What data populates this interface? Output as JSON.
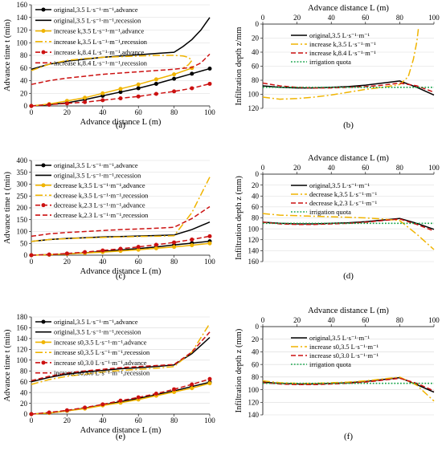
{
  "colors": {
    "original": "#000000",
    "k_a": "#f0b400",
    "k_b": "#cc1111",
    "quota": "#16a34a"
  },
  "chart_data": [
    {
      "type": "line",
      "panel_label": "(a)",
      "xlabel": "Advance distance L (m)",
      "ylabel": "Advance time t (min)",
      "xlim": [
        0,
        100
      ],
      "ylim": [
        0,
        160
      ],
      "xticks": [
        0,
        20,
        40,
        60,
        80,
        100
      ],
      "yticks": [
        0,
        20,
        40,
        60,
        80,
        100,
        120,
        140,
        160
      ],
      "legend_position": "top-left",
      "series": [
        {
          "name": "original,3.5 L·s⁻¹·m⁻¹,advance",
          "color_key": "original",
          "style": "solid-marker",
          "x": [
            0,
            10,
            20,
            30,
            40,
            50,
            60,
            70,
            80,
            90,
            100
          ],
          "y": [
            0,
            2,
            5,
            10,
            16,
            22,
            28,
            35,
            43,
            51,
            59
          ]
        },
        {
          "name": "original,3.5 L·s⁻¹·m⁻¹,recession",
          "color_key": "original",
          "style": "solid",
          "x": [
            0,
            10,
            20,
            30,
            40,
            50,
            60,
            70,
            80,
            85,
            90,
            95,
            100
          ],
          "y": [
            58,
            66,
            71,
            74,
            77,
            79,
            81,
            83,
            85,
            94,
            105,
            120,
            140
          ]
        },
        {
          "name": "increase k,3.5 L·s⁻¹·m⁻¹,advance",
          "color_key": "k_a",
          "style": "solid-marker",
          "x": [
            0,
            10,
            20,
            30,
            40,
            50,
            60,
            70,
            80,
            90
          ],
          "y": [
            0,
            3,
            8,
            13,
            20,
            27,
            34,
            42,
            50,
            60
          ]
        },
        {
          "name": "increase k,3.5 L·s⁻¹·m⁻¹,recession",
          "color_key": "k_a",
          "style": "dashdot",
          "x": [
            0,
            10,
            20,
            30,
            40,
            50,
            60,
            70,
            80,
            85,
            88,
            90,
            88,
            85
          ],
          "y": [
            56,
            66,
            72,
            75,
            77,
            78,
            79,
            80,
            80,
            79,
            77,
            72,
            65,
            60
          ]
        },
        {
          "name": "increase k,8.4 L·s⁻¹·m⁻¹,advance",
          "color_key": "k_b",
          "style": "dashed-marker",
          "x": [
            0,
            10,
            20,
            30,
            40,
            50,
            60,
            70,
            80,
            90,
            100
          ],
          "y": [
            0,
            2,
            4,
            6,
            9,
            12,
            15,
            19,
            23,
            28,
            35
          ]
        },
        {
          "name": "increase k,8.4 L·s⁻¹·m⁻¹,recession",
          "color_key": "k_b",
          "style": "dashed",
          "x": [
            0,
            10,
            20,
            30,
            40,
            50,
            60,
            70,
            80,
            90,
            95,
            100
          ],
          "y": [
            34,
            40,
            44,
            47,
            50,
            52,
            54,
            56,
            58,
            61,
            68,
            82
          ]
        }
      ]
    },
    {
      "type": "line",
      "panel_label": "(b)",
      "xlabel": "Advance distance L (m)",
      "ylabel": "Infiltration depth z/mm",
      "x_axis_position": "top",
      "y_inverted": true,
      "xlim": [
        0,
        100
      ],
      "ylim": [
        0,
        120
      ],
      "xticks": [
        0,
        20,
        40,
        60,
        80,
        100
      ],
      "yticks": [
        0,
        20,
        40,
        60,
        80,
        100,
        120
      ],
      "legend_position": "top-right",
      "series": [
        {
          "name": "original,3.5 L·s⁻¹·m⁻¹",
          "color_key": "original",
          "style": "solid",
          "x": [
            0,
            10,
            20,
            30,
            40,
            50,
            60,
            70,
            80,
            90,
            100
          ],
          "y": [
            88,
            90,
            91,
            91,
            90,
            89,
            87,
            84,
            81,
            90,
            101
          ]
        },
        {
          "name": "increase k,3.5 L·s⁻¹·m⁻¹",
          "color_key": "k_a",
          "style": "dashdot",
          "x": [
            0,
            10,
            20,
            30,
            40,
            50,
            60,
            70,
            80,
            85,
            88,
            90,
            91
          ],
          "y": [
            104,
            107,
            106,
            104,
            101,
            97,
            93,
            90,
            86,
            75,
            50,
            25,
            5
          ]
        },
        {
          "name": "increase k,8.4 L·s⁻¹·m⁻¹",
          "color_key": "k_b",
          "style": "dashed",
          "x": [
            0,
            10,
            20,
            30,
            40,
            50,
            60,
            70,
            80,
            90,
            100
          ],
          "y": [
            84,
            88,
            90,
            91,
            91,
            90,
            89,
            87,
            84,
            88,
            97
          ]
        },
        {
          "name": "irrigation quota",
          "color_key": "quota",
          "style": "dotted",
          "x": [
            0,
            100
          ],
          "y": [
            90,
            90
          ]
        }
      ]
    },
    {
      "type": "line",
      "panel_label": "(c)",
      "xlabel": "Advance distance L (m)",
      "ylabel": "Advance time t (min)",
      "xlim": [
        0,
        100
      ],
      "ylim": [
        0,
        400
      ],
      "xticks": [
        0,
        20,
        40,
        60,
        80,
        100
      ],
      "yticks": [
        0,
        50,
        100,
        150,
        200,
        250,
        300,
        350,
        400
      ],
      "legend_position": "top-left",
      "series": [
        {
          "name": "original,3.5 L·s⁻¹·m⁻¹,advance",
          "color_key": "original",
          "style": "solid-marker",
          "x": [
            0,
            10,
            20,
            30,
            40,
            50,
            60,
            70,
            80,
            90,
            100
          ],
          "y": [
            0,
            2,
            5,
            10,
            16,
            22,
            28,
            35,
            43,
            51,
            59
          ]
        },
        {
          "name": "original,3.5 L·s⁻¹·m⁻¹,recession",
          "color_key": "original",
          "style": "solid",
          "x": [
            0,
            10,
            20,
            30,
            40,
            50,
            60,
            70,
            80,
            90,
            100
          ],
          "y": [
            58,
            66,
            71,
            74,
            77,
            79,
            81,
            83,
            85,
            108,
            140
          ]
        },
        {
          "name": "decrease k,3.5 L·s⁻¹·m⁻¹,advance",
          "color_key": "k_a",
          "style": "solid-marker",
          "x": [
            0,
            10,
            20,
            30,
            40,
            50,
            60,
            70,
            80,
            90,
            100
          ],
          "y": [
            0,
            2,
            5,
            9,
            13,
            18,
            23,
            29,
            35,
            42,
            50
          ]
        },
        {
          "name": "decrease k,3.5 L·s⁻¹·m⁻¹,recession",
          "color_key": "k_a",
          "style": "dashdot",
          "x": [
            0,
            10,
            20,
            30,
            40,
            50,
            60,
            70,
            80,
            90,
            100
          ],
          "y": [
            58,
            66,
            70,
            73,
            75,
            77,
            79,
            80,
            82,
            180,
            330
          ]
        },
        {
          "name": "decrease k,2.3 L·s⁻¹·m⁻¹,advance",
          "color_key": "k_b",
          "style": "dashed-marker",
          "x": [
            0,
            10,
            20,
            30,
            40,
            50,
            60,
            70,
            80,
            90,
            100
          ],
          "y": [
            0,
            3,
            7,
            13,
            20,
            27,
            35,
            44,
            54,
            66,
            80
          ]
        },
        {
          "name": "decrease k,2.3 L·s⁻¹·m⁻¹,recession",
          "color_key": "k_b",
          "style": "dashed",
          "x": [
            0,
            10,
            20,
            30,
            40,
            50,
            60,
            70,
            80,
            90,
            100
          ],
          "y": [
            80,
            90,
            96,
            100,
            104,
            108,
            111,
            114,
            118,
            155,
            205
          ]
        }
      ]
    },
    {
      "type": "line",
      "panel_label": "(d)",
      "xlabel": "Advance distance L (m)",
      "ylabel": "Infiltration depth z (mm)",
      "x_axis_position": "top",
      "y_inverted": true,
      "xlim": [
        0,
        100
      ],
      "ylim": [
        0,
        160
      ],
      "xticks": [
        0,
        20,
        40,
        60,
        80,
        100
      ],
      "yticks": [
        0,
        20,
        40,
        60,
        80,
        100,
        120,
        140,
        160
      ],
      "legend_position": "top-right",
      "series": [
        {
          "name": "original,3.5 L·s⁻¹·m⁻¹",
          "color_key": "original",
          "style": "solid",
          "x": [
            0,
            10,
            20,
            30,
            40,
            50,
            60,
            70,
            80,
            90,
            100
          ],
          "y": [
            88,
            90,
            91,
            91,
            90,
            89,
            87,
            84,
            81,
            90,
            101
          ]
        },
        {
          "name": "decrease k,3.5 L·s⁻¹·m⁻¹",
          "color_key": "k_a",
          "style": "dashdot",
          "x": [
            0,
            10,
            20,
            30,
            40,
            50,
            60,
            70,
            80,
            90,
            100
          ],
          "y": [
            72,
            75,
            76,
            77,
            78,
            79,
            80,
            82,
            85,
            110,
            138
          ]
        },
        {
          "name": "decrease k,2.3 L·s⁻¹·m⁻¹",
          "color_key": "k_b",
          "style": "dashed",
          "x": [
            0,
            10,
            20,
            30,
            40,
            50,
            60,
            70,
            80,
            90,
            100
          ],
          "y": [
            88,
            91,
            92,
            92,
            91,
            90,
            88,
            85,
            82,
            92,
            104
          ]
        },
        {
          "name": "irrigation quota",
          "color_key": "quota",
          "style": "dotted",
          "x": [
            0,
            100
          ],
          "y": [
            90,
            90
          ]
        }
      ]
    },
    {
      "type": "line",
      "panel_label": "(e)",
      "xlabel": "Advance distance L (m)",
      "ylabel": "Advance time t (min)",
      "xlim": [
        0,
        100
      ],
      "ylim": [
        0,
        180
      ],
      "xticks": [
        0,
        20,
        40,
        60,
        80,
        100
      ],
      "yticks": [
        0,
        20,
        40,
        60,
        80,
        100,
        120,
        140,
        160,
        180
      ],
      "legend_position": "top-left",
      "series": [
        {
          "name": "original,3.5 L·s⁻¹·m⁻¹,advance",
          "color_key": "original",
          "style": "solid-marker",
          "x": [
            0,
            10,
            20,
            30,
            40,
            50,
            60,
            70,
            80,
            90,
            100
          ],
          "y": [
            0,
            2,
            6,
            11,
            17,
            23,
            29,
            36,
            43,
            51,
            59
          ]
        },
        {
          "name": "original,3.5 L·s⁻¹·m⁻¹,recession",
          "color_key": "original",
          "style": "solid",
          "x": [
            0,
            10,
            20,
            30,
            40,
            50,
            60,
            70,
            80,
            90,
            100
          ],
          "y": [
            60,
            68,
            74,
            78,
            81,
            84,
            86,
            88,
            91,
            112,
            142
          ]
        },
        {
          "name": "increase s0,3.5 L·s⁻¹·m⁻¹,advance",
          "color_key": "k_a",
          "style": "solid-marker",
          "x": [
            0,
            10,
            20,
            30,
            40,
            50,
            60,
            70,
            80,
            90,
            100
          ],
          "y": [
            0,
            2,
            6,
            10,
            16,
            21,
            27,
            34,
            41,
            48,
            57
          ]
        },
        {
          "name": "increase s0,3.5 L·s⁻¹·m⁻¹,recession",
          "color_key": "k_a",
          "style": "dashdot",
          "x": [
            0,
            10,
            20,
            30,
            40,
            50,
            60,
            70,
            80,
            90,
            100
          ],
          "y": [
            55,
            64,
            70,
            74,
            78,
            81,
            83,
            85,
            88,
            115,
            168
          ]
        },
        {
          "name": "increase s0,3.0 L·s⁻¹·m⁻¹,advance",
          "color_key": "k_b",
          "style": "dashed-marker",
          "x": [
            0,
            10,
            20,
            30,
            40,
            50,
            60,
            70,
            80,
            90,
            100
          ],
          "y": [
            0,
            3,
            7,
            12,
            18,
            25,
            31,
            38,
            46,
            55,
            65
          ]
        },
        {
          "name": "increase s0,3.0 L·s⁻¹·m⁻¹,recession",
          "color_key": "k_b",
          "style": "dashed",
          "x": [
            0,
            10,
            20,
            30,
            40,
            50,
            60,
            70,
            80,
            90,
            100
          ],
          "y": [
            62,
            70,
            76,
            80,
            83,
            86,
            88,
            90,
            92,
            115,
            152
          ]
        }
      ]
    },
    {
      "type": "line",
      "panel_label": "(f)",
      "xlabel": "Advance distance L (m)",
      "ylabel": "Infiltration depth z (mm)",
      "x_axis_position": "top",
      "y_inverted": true,
      "xlim": [
        0,
        100
      ],
      "ylim": [
        0,
        140
      ],
      "xticks": [
        0,
        20,
        40,
        60,
        80,
        100
      ],
      "yticks": [
        0,
        20,
        40,
        60,
        80,
        100,
        120,
        140
      ],
      "legend_position": "top-right",
      "series": [
        {
          "name": "original,3.5 L·s⁻¹·m⁻¹",
          "color_key": "original",
          "style": "solid",
          "x": [
            0,
            10,
            20,
            30,
            40,
            50,
            60,
            70,
            80,
            90,
            100
          ],
          "y": [
            88,
            90,
            91,
            91,
            90,
            89,
            87,
            84,
            81,
            92,
            104
          ]
        },
        {
          "name": "increase s0,3.5 L·s⁻¹·m⁻¹",
          "color_key": "k_a",
          "style": "dashdot",
          "x": [
            0,
            10,
            20,
            30,
            40,
            50,
            60,
            70,
            80,
            90,
            100
          ],
          "y": [
            86,
            89,
            90,
            90,
            89,
            88,
            86,
            83,
            80,
            93,
            118
          ]
        },
        {
          "name": "increase s0,3.0 L·s⁻¹·m⁻¹",
          "color_key": "k_b",
          "style": "dashed",
          "x": [
            0,
            10,
            20,
            30,
            40,
            50,
            60,
            70,
            80,
            90,
            100
          ],
          "y": [
            89,
            91,
            92,
            92,
            91,
            90,
            88,
            85,
            82,
            90,
            102
          ]
        },
        {
          "name": "irrigation quota",
          "color_key": "quota",
          "style": "dotted",
          "x": [
            0,
            100
          ],
          "y": [
            90,
            90
          ]
        }
      ]
    }
  ]
}
